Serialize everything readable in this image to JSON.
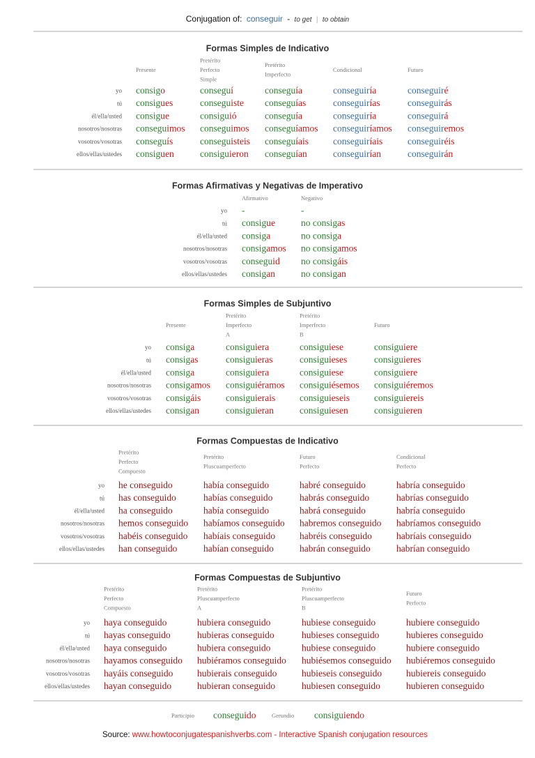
{
  "header": {
    "prefix": "Conjugation of:",
    "verb": "conseguir",
    "dash": "-",
    "meaning1": "to get",
    "bar": "|",
    "meaning2": "to obtain"
  },
  "sections": [
    {
      "title": "Formas Simples de Indicativo",
      "columns": [
        {
          "label": [
            "Presente"
          ],
          "colors": [
            "#2e7d32",
            "#b71c1c"
          ]
        },
        {
          "label": [
            "Pretérito",
            "Perfecto",
            "Simple"
          ],
          "colors": [
            "#2e7d32",
            "#b71c1c"
          ]
        },
        {
          "label": [
            "Pretérito",
            "Imperfecto"
          ],
          "colors": [
            "#2e7d32",
            "#b71c1c"
          ]
        },
        {
          "label": [
            "Condicional"
          ],
          "colors": [
            "#3a6e9c",
            "#b71c1c"
          ]
        },
        {
          "label": [
            "Futuro"
          ],
          "colors": [
            "#3a6e9c",
            "#b71c1c"
          ]
        }
      ],
      "rows": [
        {
          "pronoun": "yo",
          "cells": [
            [
              "consig",
              "o"
            ],
            [
              "consegu",
              "í"
            ],
            [
              "consegu",
              "ía"
            ],
            [
              "conseguir",
              "ía"
            ],
            [
              "conseguir",
              "é"
            ]
          ]
        },
        {
          "pronoun": "tú",
          "cells": [
            [
              "consig",
              "ues"
            ],
            [
              "consegu",
              "iste"
            ],
            [
              "consegu",
              "ías"
            ],
            [
              "conseguir",
              "ías"
            ],
            [
              "conseguir",
              "ás"
            ]
          ]
        },
        {
          "pronoun": "él/ella/usted",
          "cells": [
            [
              "consig",
              "ue"
            ],
            [
              "consigu",
              "ió"
            ],
            [
              "consegu",
              "ía"
            ],
            [
              "conseguir",
              "ía"
            ],
            [
              "conseguir",
              "á"
            ]
          ]
        },
        {
          "pronoun": "nosotros/nosotras",
          "cells": [
            [
              "consegu",
              "imos"
            ],
            [
              "consegu",
              "imos"
            ],
            [
              "consegu",
              "íamos"
            ],
            [
              "conseguir",
              "íamos"
            ],
            [
              "conseguir",
              "emos"
            ]
          ]
        },
        {
          "pronoun": "vosotros/vosotras",
          "cells": [
            [
              "consegu",
              "ís"
            ],
            [
              "consegu",
              "isteis"
            ],
            [
              "consegu",
              "íais"
            ],
            [
              "conseguir",
              "íais"
            ],
            [
              "conseguir",
              "éis"
            ]
          ]
        },
        {
          "pronoun": "ellos/ellas/ustedes",
          "cells": [
            [
              "consig",
              "uen"
            ],
            [
              "consigu",
              "ieron"
            ],
            [
              "consegu",
              "ían"
            ],
            [
              "conseguir",
              "ían"
            ],
            [
              "conseguir",
              "án"
            ]
          ]
        }
      ]
    },
    {
      "title": "Formas Afirmativas y Negativas de Imperativo",
      "columns": [
        {
          "label": [
            "Afirmativo"
          ],
          "colors": [
            "#2e7d32",
            "#b71c1c"
          ]
        },
        {
          "label": [
            "Negativo"
          ],
          "colors": [
            "#2e7d32",
            "#b71c1c"
          ]
        }
      ],
      "rows": [
        {
          "pronoun": "yo",
          "cells": [
            [
              "-"
            ],
            [
              "-"
            ]
          ]
        },
        {
          "pronoun": "tú",
          "cells": [
            [
              "consig",
              "ue"
            ],
            [
              "no consig",
              "as"
            ]
          ]
        },
        {
          "pronoun": "él/ella/usted",
          "cells": [
            [
              "consig",
              "a"
            ],
            [
              "no consig",
              "a"
            ]
          ]
        },
        {
          "pronoun": "nosotros/nosotras",
          "cells": [
            [
              "consig",
              "amos"
            ],
            [
              "no consig",
              "amos"
            ]
          ]
        },
        {
          "pronoun": "vosotros/vosotras",
          "cells": [
            [
              "consegu",
              "id"
            ],
            [
              "no consig",
              "áis"
            ]
          ]
        },
        {
          "pronoun": "ellos/ellas/ustedes",
          "cells": [
            [
              "consig",
              "an"
            ],
            [
              "no consig",
              "an"
            ]
          ]
        }
      ]
    },
    {
      "title": "Formas Simples de Subjuntivo",
      "columns": [
        {
          "label": [
            "Presente"
          ],
          "colors": [
            "#2e7d32",
            "#b71c1c"
          ]
        },
        {
          "label": [
            "Pretérito",
            "Imperfecto",
            "A"
          ],
          "colors": [
            "#2e7d32",
            "#b71c1c"
          ]
        },
        {
          "label": [
            "Pretérito",
            "Imperfecto",
            "B"
          ],
          "colors": [
            "#2e7d32",
            "#b71c1c"
          ]
        },
        {
          "label": [
            "Futuro"
          ],
          "colors": [
            "#2e7d32",
            "#b71c1c"
          ]
        }
      ],
      "rows": [
        {
          "pronoun": "yo",
          "cells": [
            [
              "consig",
              "a"
            ],
            [
              "consigu",
              "iera"
            ],
            [
              "consigu",
              "iese"
            ],
            [
              "consigu",
              "iere"
            ]
          ]
        },
        {
          "pronoun": "tú",
          "cells": [
            [
              "consig",
              "as"
            ],
            [
              "consigu",
              "ieras"
            ],
            [
              "consigu",
              "ieses"
            ],
            [
              "consigu",
              "ieres"
            ]
          ]
        },
        {
          "pronoun": "él/ella/usted",
          "cells": [
            [
              "consig",
              "a"
            ],
            [
              "consigu",
              "iera"
            ],
            [
              "consigu",
              "iese"
            ],
            [
              "consigu",
              "iere"
            ]
          ]
        },
        {
          "pronoun": "nosotros/nosotras",
          "cells": [
            [
              "consig",
              "amos"
            ],
            [
              "consigu",
              "iéramos"
            ],
            [
              "consigu",
              "iésemos"
            ],
            [
              "consigu",
              "iéremos"
            ]
          ]
        },
        {
          "pronoun": "vosotros/vosotras",
          "cells": [
            [
              "consig",
              "áis"
            ],
            [
              "consigu",
              "ierais"
            ],
            [
              "consigu",
              "ieseis"
            ],
            [
              "consigu",
              "iereis"
            ]
          ]
        },
        {
          "pronoun": "ellos/ellas/ustedes",
          "cells": [
            [
              "consig",
              "an"
            ],
            [
              "consigu",
              "ieran"
            ],
            [
              "consigu",
              "iesen"
            ],
            [
              "consigu",
              "ieren"
            ]
          ]
        }
      ]
    },
    {
      "title": "Formas Compuestas de Indicativo",
      "columns": [
        {
          "label": [
            "Pretérito",
            "Perfecto",
            "Compuesto"
          ],
          "colors": [
            "#8b1a1a"
          ]
        },
        {
          "label": [
            "Pretérito",
            "Pluscuamperfecto"
          ],
          "colors": [
            "#8b1a1a"
          ]
        },
        {
          "label": [
            "Futuro",
            "Perfecto"
          ],
          "colors": [
            "#8b1a1a"
          ]
        },
        {
          "label": [
            "Condicional",
            "Perfecto"
          ],
          "colors": [
            "#8b1a1a"
          ]
        }
      ],
      "rows": [
        {
          "pronoun": "yo",
          "cells": [
            [
              "he conseguido"
            ],
            [
              "había conseguido"
            ],
            [
              "habré conseguido"
            ],
            [
              "habría conseguido"
            ]
          ]
        },
        {
          "pronoun": "tú",
          "cells": [
            [
              "has conseguido"
            ],
            [
              "habías conseguido"
            ],
            [
              "habrás conseguido"
            ],
            [
              "habrías conseguido"
            ]
          ]
        },
        {
          "pronoun": "él/ella/usted",
          "cells": [
            [
              "ha conseguido"
            ],
            [
              "había conseguido"
            ],
            [
              "habrá conseguido"
            ],
            [
              "habría conseguido"
            ]
          ]
        },
        {
          "pronoun": "nosotros/nosotras",
          "cells": [
            [
              "hemos conseguido"
            ],
            [
              "habíamos conseguido"
            ],
            [
              "habremos conseguido"
            ],
            [
              "habríamos conseguido"
            ]
          ]
        },
        {
          "pronoun": "vosotros/vosotras",
          "cells": [
            [
              "habéis conseguido"
            ],
            [
              "habíais conseguido"
            ],
            [
              "habréis conseguido"
            ],
            [
              "habríais conseguido"
            ]
          ]
        },
        {
          "pronoun": "ellos/ellas/ustedes",
          "cells": [
            [
              "han conseguido"
            ],
            [
              "habían conseguido"
            ],
            [
              "habrán conseguido"
            ],
            [
              "habrían conseguido"
            ]
          ]
        }
      ]
    },
    {
      "title": "Formas Compuestas de Subjuntivo",
      "columns": [
        {
          "label": [
            "Pretérito",
            "Perfecto",
            "Compuesto"
          ],
          "colors": [
            "#8b1a1a"
          ]
        },
        {
          "label": [
            "Pretérito",
            "Pluscuamperfecto",
            "A"
          ],
          "colors": [
            "#8b1a1a"
          ]
        },
        {
          "label": [
            "Pretérito",
            "Pluscuamperfecto",
            "B"
          ],
          "colors": [
            "#8b1a1a"
          ]
        },
        {
          "label": [
            "Futuro",
            "Perfecto"
          ],
          "colors": [
            "#8b1a1a"
          ]
        }
      ],
      "rows": [
        {
          "pronoun": "yo",
          "cells": [
            [
              "haya conseguido"
            ],
            [
              "hubiera conseguido"
            ],
            [
              "hubiese conseguido"
            ],
            [
              "hubiere conseguido"
            ]
          ]
        },
        {
          "pronoun": "tú",
          "cells": [
            [
              "hayas conseguido"
            ],
            [
              "hubieras conseguido"
            ],
            [
              "hubieses conseguido"
            ],
            [
              "hubieres conseguido"
            ]
          ]
        },
        {
          "pronoun": "él/ella/usted",
          "cells": [
            [
              "haya conseguido"
            ],
            [
              "hubiera conseguido"
            ],
            [
              "hubiese conseguido"
            ],
            [
              "hubiere conseguido"
            ]
          ]
        },
        {
          "pronoun": "nosotros/nosotras",
          "cells": [
            [
              "hayamos conseguido"
            ],
            [
              "hubiéramos conseguido"
            ],
            [
              "hubiésemos conseguido"
            ],
            [
              "hubiéremos conseguido"
            ]
          ]
        },
        {
          "pronoun": "vosotros/vosotras",
          "cells": [
            [
              "hayáis conseguido"
            ],
            [
              "hubierais conseguido"
            ],
            [
              "hubieseis conseguido"
            ],
            [
              "hubiereis conseguido"
            ]
          ]
        },
        {
          "pronoun": "ellos/ellas/ustedes",
          "cells": [
            [
              "hayan conseguido"
            ],
            [
              "hubieran conseguido"
            ],
            [
              "hubiesen conseguido"
            ],
            [
              "hubieren conseguido"
            ]
          ]
        }
      ]
    }
  ],
  "footer": {
    "participle_label": "Participio",
    "participle": [
      "consegu",
      "ido"
    ],
    "gerund_label": "Gerundio",
    "gerund": [
      "consigu",
      "iendo"
    ],
    "source_label": "Source:",
    "source_link": "www.howtoconjugatespanishverbs.com",
    "source_text": "- Interactive Spanish conjugation resources"
  }
}
